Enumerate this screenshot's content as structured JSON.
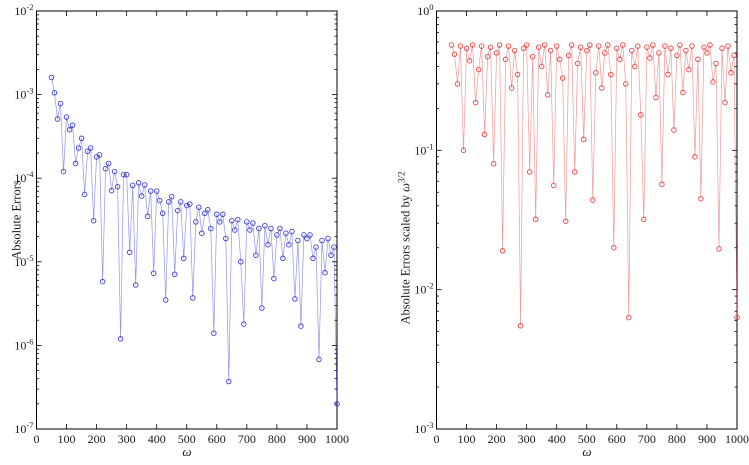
{
  "figure_title": "",
  "labels": {
    "omega": "ω",
    "left_ylabel": "Absolute Errors",
    "right_ylabel_prefix": "Absolute Errors scaled by ",
    "right_ylabel_exponent": "3/2"
  },
  "chart_data": [
    {
      "panel": "left",
      "type": "line",
      "marker": "circle",
      "color": "#2b2bd0",
      "xlabel": "ω",
      "ylabel": "Absolute Errors",
      "xlim": [
        0,
        1000
      ],
      "ylim": [
        1e-07,
        0.01
      ],
      "yscale": "log",
      "grid": false,
      "x_ticks": [
        0,
        100,
        200,
        300,
        400,
        500,
        600,
        700,
        800,
        900,
        1000
      ],
      "y_tick_exponents": [
        -2,
        -3,
        -4,
        -5,
        -6,
        -7
      ],
      "x": [
        50,
        60,
        70,
        80,
        90,
        100,
        110,
        120,
        130,
        140,
        150,
        160,
        170,
        180,
        190,
        200,
        210,
        220,
        230,
        240,
        250,
        260,
        270,
        280,
        290,
        300,
        310,
        320,
        330,
        340,
        350,
        360,
        370,
        380,
        390,
        400,
        410,
        420,
        430,
        440,
        450,
        460,
        470,
        480,
        490,
        500,
        510,
        520,
        530,
        540,
        550,
        560,
        570,
        580,
        590,
        600,
        610,
        620,
        630,
        640,
        650,
        660,
        670,
        680,
        690,
        700,
        710,
        720,
        730,
        740,
        750,
        760,
        770,
        780,
        790,
        800,
        810,
        820,
        830,
        840,
        850,
        860,
        870,
        880,
        890,
        900,
        910,
        920,
        930,
        940,
        950,
        960,
        970,
        980,
        990,
        1000
      ],
      "values": [
        0.0016,
        0.00105,
        0.00051,
        0.00078,
        0.00012,
        0.00054,
        0.00038,
        0.00043,
        0.00015,
        0.00023,
        0.0003,
        6.4e-05,
        0.00021,
        0.00023,
        3.1e-05,
        0.00018,
        0.00019,
        5.8e-06,
        0.00013,
        0.00015,
        7.1e-05,
        0.00012,
        7.9e-05,
        1.2e-06,
        0.00011,
        0.00011,
        1.3e-05,
        8.2e-05,
        5.3e-06,
        8.8e-05,
        6.1e-05,
        8.3e-05,
        3.5e-05,
        7e-05,
        7.3e-06,
        7e-05,
        5.4e-05,
        3.8e-05,
        3.5e-06,
        5.2e-05,
        6e-05,
        7.1e-06,
        4.1e-05,
        5.2e-05,
        1.1e-05,
        4.7e-05,
        4.9e-05,
        3.7e-06,
        3e-05,
        4.5e-05,
        2.2e-05,
        3.8e-05,
        4.2e-05,
        2.5e-05,
        1.4e-06,
        3.7e-05,
        3e-05,
        3.7e-05,
        1.9e-05,
        3.7e-07,
        3.1e-05,
        2.4e-05,
        3.2e-05,
        1e-05,
        1.8e-06,
        3e-05,
        2.4e-05,
        2.9e-05,
        1.2e-05,
        2.5e-05,
        2.8e-06,
        2.7e-05,
        1.6e-05,
        2.5e-05,
        6.3e-06,
        2.1e-05,
        2.5e-05,
        1.1e-05,
        2.2e-05,
        1.6e-05,
        2.3e-05,
        3.6e-06,
        1.8e-05,
        1.7e-06,
        2.1e-05,
        1.9e-05,
        2.1e-05,
        1.1e-05,
        1.5e-05,
        6.8e-07,
        1.8e-05,
        7.4e-06,
        1.9e-05,
        1.2e-05,
        1.5e-05,
        2e-07
      ]
    },
    {
      "panel": "right",
      "type": "line",
      "marker": "circle",
      "color": "#e03535",
      "xlabel": "ω",
      "ylabel": "Absolute Errors scaled by ω^(3/2)",
      "xlim": [
        0,
        1000
      ],
      "ylim": [
        0.001,
        1
      ],
      "yscale": "log",
      "grid": false,
      "x_ticks": [
        0,
        100,
        200,
        300,
        400,
        500,
        600,
        700,
        800,
        900,
        1000
      ],
      "y_tick_exponents": [
        0,
        -1,
        -2,
        -3
      ],
      "x": [
        50,
        60,
        70,
        80,
        90,
        100,
        110,
        120,
        130,
        140,
        150,
        160,
        170,
        180,
        190,
        200,
        210,
        220,
        230,
        240,
        250,
        260,
        270,
        280,
        290,
        300,
        310,
        320,
        330,
        340,
        350,
        360,
        370,
        380,
        390,
        400,
        410,
        420,
        430,
        440,
        450,
        460,
        470,
        480,
        490,
        500,
        510,
        520,
        530,
        540,
        550,
        560,
        570,
        580,
        590,
        600,
        610,
        620,
        630,
        640,
        650,
        660,
        670,
        680,
        690,
        700,
        710,
        720,
        730,
        740,
        750,
        760,
        770,
        780,
        790,
        800,
        810,
        820,
        830,
        840,
        850,
        860,
        870,
        880,
        890,
        900,
        910,
        920,
        930,
        940,
        950,
        960,
        970,
        980,
        990,
        1000
      ],
      "values": [
        0.57,
        0.49,
        0.3,
        0.56,
        0.1,
        0.54,
        0.44,
        0.57,
        0.22,
        0.38,
        0.56,
        0.13,
        0.47,
        0.55,
        0.08,
        0.5,
        0.57,
        0.019,
        0.45,
        0.56,
        0.28,
        0.52,
        0.35,
        0.0055,
        0.54,
        0.57,
        0.07,
        0.47,
        0.032,
        0.55,
        0.4,
        0.57,
        0.25,
        0.52,
        0.056,
        0.56,
        0.45,
        0.33,
        0.031,
        0.48,
        0.57,
        0.07,
        0.42,
        0.55,
        0.12,
        0.52,
        0.57,
        0.044,
        0.36,
        0.56,
        0.28,
        0.5,
        0.57,
        0.35,
        0.02,
        0.54,
        0.45,
        0.57,
        0.3,
        0.0063,
        0.52,
        0.4,
        0.56,
        0.18,
        0.032,
        0.55,
        0.46,
        0.57,
        0.24,
        0.5,
        0.057,
        0.56,
        0.35,
        0.54,
        0.14,
        0.48,
        0.57,
        0.26,
        0.52,
        0.38,
        0.56,
        0.09,
        0.45,
        0.045,
        0.55,
        0.5,
        0.57,
        0.31,
        0.42,
        0.0196,
        0.54,
        0.22,
        0.56,
        0.36,
        0.48,
        0.0063
      ]
    }
  ]
}
